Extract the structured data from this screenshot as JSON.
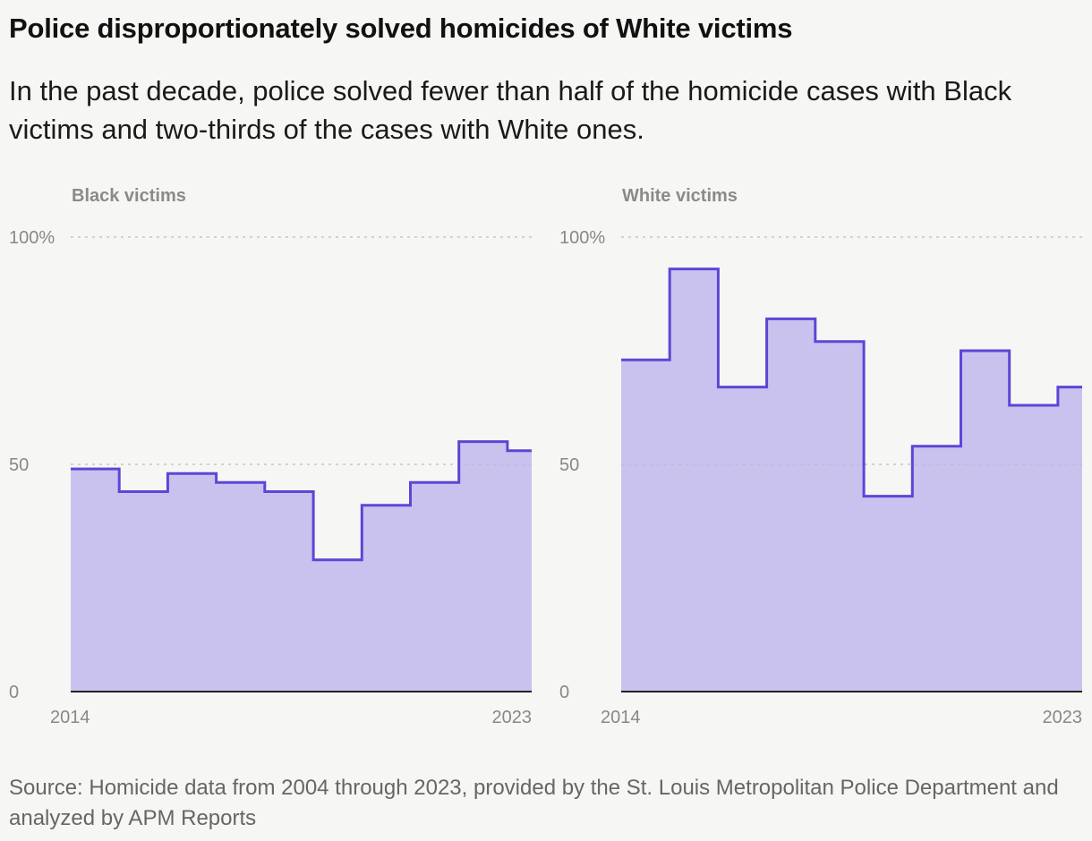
{
  "title": "Police disproportionately solved homicides of White victims",
  "subtitle": "In the past decade, police solved fewer than half of the homicide cases with Black victims and two-thirds of the cases with White ones.",
  "source": "Source: Homicide data from 2004 through 2023, provided by the St. Louis Metropolitan Police Department and analyzed by APM Reports",
  "colors": {
    "line": "#5a47d6",
    "fill": "#c9c2ee",
    "grid": "#bbbbbb",
    "axis": "#222222"
  },
  "chart_data": [
    {
      "type": "area",
      "step": true,
      "title": "Black victims",
      "x": [
        2014,
        2015,
        2016,
        2017,
        2018,
        2019,
        2020,
        2021,
        2022,
        2023
      ],
      "values": [
        49,
        44,
        48,
        46,
        44,
        29,
        41,
        46,
        55,
        53
      ],
      "ylim": [
        0,
        100
      ],
      "yticks": [
        "0",
        "50",
        "100%"
      ],
      "xtick_labels": [
        "2014",
        "2023"
      ],
      "grid": true
    },
    {
      "type": "area",
      "step": true,
      "title": "White victims",
      "x": [
        2014,
        2015,
        2016,
        2017,
        2018,
        2019,
        2020,
        2021,
        2022,
        2023
      ],
      "values": [
        73,
        93,
        67,
        82,
        77,
        43,
        54,
        75,
        63,
        67
      ],
      "ylim": [
        0,
        100
      ],
      "yticks": [
        "0",
        "50",
        "100%"
      ],
      "xtick_labels": [
        "2014",
        "2023"
      ],
      "grid": true
    }
  ]
}
